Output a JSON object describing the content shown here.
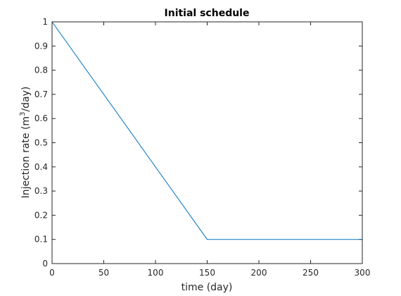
{
  "chart_data": {
    "type": "line",
    "title": "Initial schedule",
    "xlabel": "time (day)",
    "ylabel": {
      "prefix": "Injection rate (m",
      "superscript": "3",
      "suffix": "/day)"
    },
    "xlim": [
      0,
      300
    ],
    "ylim": [
      0,
      1
    ],
    "xticks": [
      0,
      50,
      100,
      150,
      200,
      250,
      300
    ],
    "xtick_labels": [
      "0",
      "50",
      "100",
      "150",
      "200",
      "250",
      "300"
    ],
    "yticks": [
      0,
      0.1,
      0.2,
      0.3,
      0.4,
      0.5,
      0.6,
      0.7,
      0.8,
      0.9,
      1
    ],
    "ytick_labels": [
      "0",
      "0.1",
      "0.2",
      "0.3",
      "0.4",
      "0.5",
      "0.6",
      "0.7",
      "0.8",
      "0.9",
      "1"
    ],
    "grid": false,
    "series": [
      {
        "color": "#0072BD",
        "x": [
          0,
          140,
          150,
          300
        ],
        "y": [
          1.0,
          0.16,
          0.1,
          0.1
        ]
      }
    ]
  }
}
